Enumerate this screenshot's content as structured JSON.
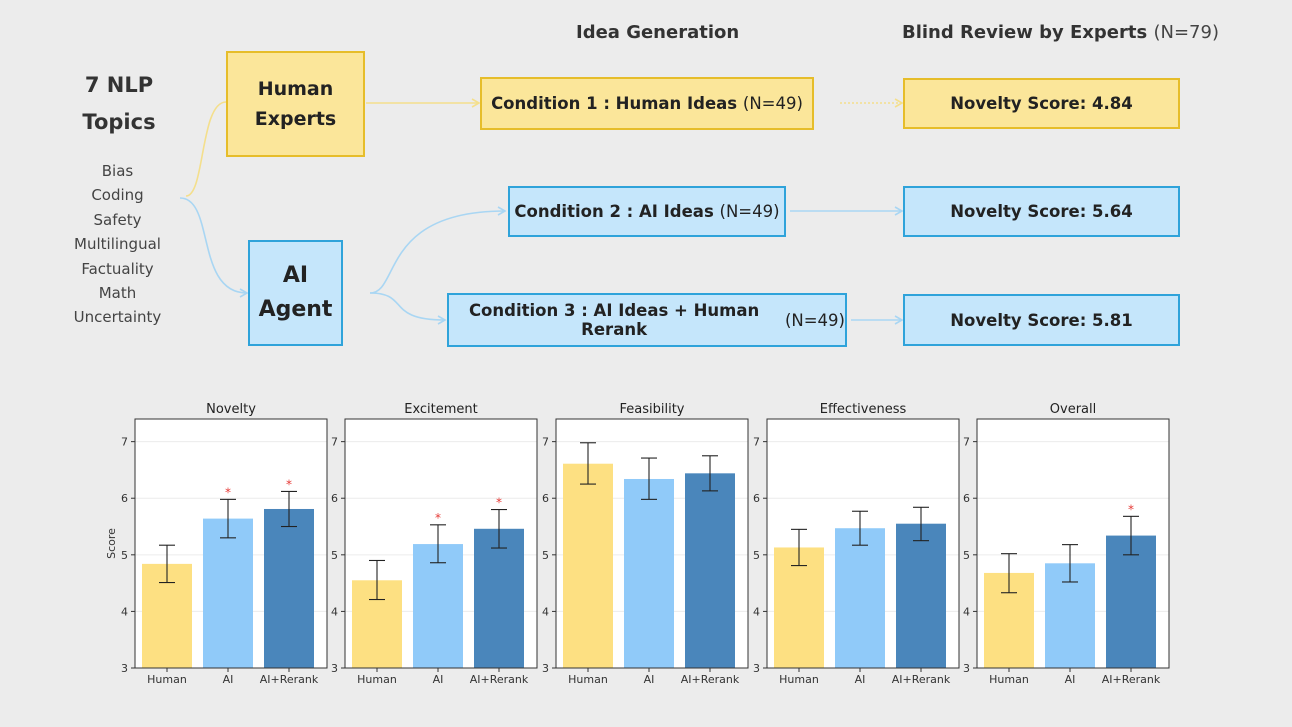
{
  "header": {
    "idea_generation": "Idea Generation",
    "blind_review_bold": "Blind Review by Experts",
    "blind_review_n": "(N=79)"
  },
  "topics": {
    "title_line1": "7 NLP",
    "title_line2": "Topics",
    "items": [
      "Bias",
      "Coding",
      "Safety",
      "Multilingual",
      "Factuality",
      "Math",
      "Uncertainty"
    ]
  },
  "sources": {
    "human_line1": "Human",
    "human_line2": "Experts",
    "ai_line1": "AI",
    "ai_line2": "Agent"
  },
  "conditions": [
    {
      "label": "Condition 1 : Human Ideas",
      "n": "(N=49)"
    },
    {
      "label": "Condition 2 : AI Ideas",
      "n": "(N=49)"
    },
    {
      "label": "Condition 3 : AI Ideas + Human Rerank",
      "n": "(N=49)"
    }
  ],
  "novelty_scores": [
    "Novelty Score: 4.84",
    "Novelty Score: 5.64",
    "Novelty Score: 5.81"
  ],
  "colors": {
    "human": "#fde082",
    "ai": "#90caf9",
    "ai_rerank": "#4a86bb",
    "star": "#e53935"
  },
  "chart_data": [
    {
      "type": "bar",
      "title": "Novelty",
      "ylabel": "Score",
      "ylim": [
        3,
        7.4
      ],
      "yticks": [
        3,
        4,
        5,
        6,
        7
      ],
      "categories": [
        "Human",
        "AI",
        "AI+Rerank"
      ],
      "values": [
        4.84,
        5.64,
        5.81
      ],
      "error_low": [
        4.51,
        5.3,
        5.5
      ],
      "error_high": [
        5.17,
        5.98,
        6.12
      ],
      "significant": [
        false,
        true,
        true
      ]
    },
    {
      "type": "bar",
      "title": "Excitement",
      "ylabel": "",
      "ylim": [
        3,
        7.4
      ],
      "yticks": [
        3,
        4,
        5,
        6,
        7
      ],
      "categories": [
        "Human",
        "AI",
        "AI+Rerank"
      ],
      "values": [
        4.55,
        5.19,
        5.46
      ],
      "error_low": [
        4.21,
        4.86,
        5.12
      ],
      "error_high": [
        4.9,
        5.53,
        5.8
      ],
      "significant": [
        false,
        true,
        true
      ]
    },
    {
      "type": "bar",
      "title": "Feasibility",
      "ylabel": "",
      "ylim": [
        3,
        7.4
      ],
      "yticks": [
        3,
        4,
        5,
        6,
        7
      ],
      "categories": [
        "Human",
        "AI",
        "AI+Rerank"
      ],
      "values": [
        6.61,
        6.34,
        6.44
      ],
      "error_low": [
        6.25,
        5.98,
        6.13
      ],
      "error_high": [
        6.98,
        6.71,
        6.75
      ],
      "significant": [
        false,
        false,
        false
      ]
    },
    {
      "type": "bar",
      "title": "Effectiveness",
      "ylabel": "",
      "ylim": [
        3,
        7.4
      ],
      "yticks": [
        3,
        4,
        5,
        6,
        7
      ],
      "categories": [
        "Human",
        "AI",
        "AI+Rerank"
      ],
      "values": [
        5.13,
        5.47,
        5.55
      ],
      "error_low": [
        4.81,
        5.17,
        5.25
      ],
      "error_high": [
        5.45,
        5.77,
        5.84
      ],
      "significant": [
        false,
        false,
        false
      ]
    },
    {
      "type": "bar",
      "title": "Overall",
      "ylabel": "",
      "ylim": [
        3,
        7.4
      ],
      "yticks": [
        3,
        4,
        5,
        6,
        7
      ],
      "categories": [
        "Human",
        "AI",
        "AI+Rerank"
      ],
      "values": [
        4.68,
        4.85,
        5.34
      ],
      "error_low": [
        4.33,
        4.52,
        5.0
      ],
      "error_high": [
        5.02,
        5.18,
        5.68
      ],
      "significant": [
        false,
        false,
        true
      ]
    }
  ]
}
